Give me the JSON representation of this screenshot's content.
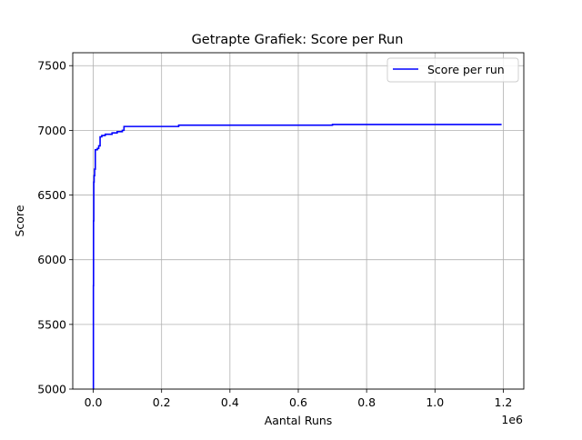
{
  "chart_data": {
    "type": "line",
    "title": "Getrapte Grafiek: Score per Run",
    "xlabel": "Aantal Runs",
    "ylabel": "Score",
    "x_offset_text": "1e6",
    "xlim": [
      -60000,
      1260000
    ],
    "ylim": [
      5000,
      7600
    ],
    "x_ticks": [
      0,
      200000,
      400000,
      600000,
      800000,
      1000000,
      1200000
    ],
    "x_tick_labels": [
      "0.0",
      "0.2",
      "0.4",
      "0.6",
      "0.8",
      "1.0",
      "1.2"
    ],
    "y_ticks": [
      5000,
      5500,
      6000,
      6500,
      7000,
      7500
    ],
    "y_tick_labels": [
      "5000",
      "5500",
      "6000",
      "6500",
      "7000",
      "7500"
    ],
    "grid": true,
    "legend_position": "top-right",
    "colors": {
      "line": "#0000ff",
      "grid": "#b0b0b0"
    },
    "series": [
      {
        "name": "Score per run",
        "step": true,
        "points": [
          [
            0,
            5000
          ],
          [
            400,
            5800
          ],
          [
            800,
            6300
          ],
          [
            1500,
            6600
          ],
          [
            2500,
            6650
          ],
          [
            4000,
            6700
          ],
          [
            6000,
            6850
          ],
          [
            12000,
            6860
          ],
          [
            16000,
            6880
          ],
          [
            20000,
            6950
          ],
          [
            25000,
            6960
          ],
          [
            35000,
            6970
          ],
          [
            55000,
            6980
          ],
          [
            70000,
            6990
          ],
          [
            85000,
            7000
          ],
          [
            90000,
            7030
          ],
          [
            250000,
            7040
          ],
          [
            700000,
            7045
          ],
          [
            1195000,
            7045
          ]
        ]
      }
    ]
  }
}
